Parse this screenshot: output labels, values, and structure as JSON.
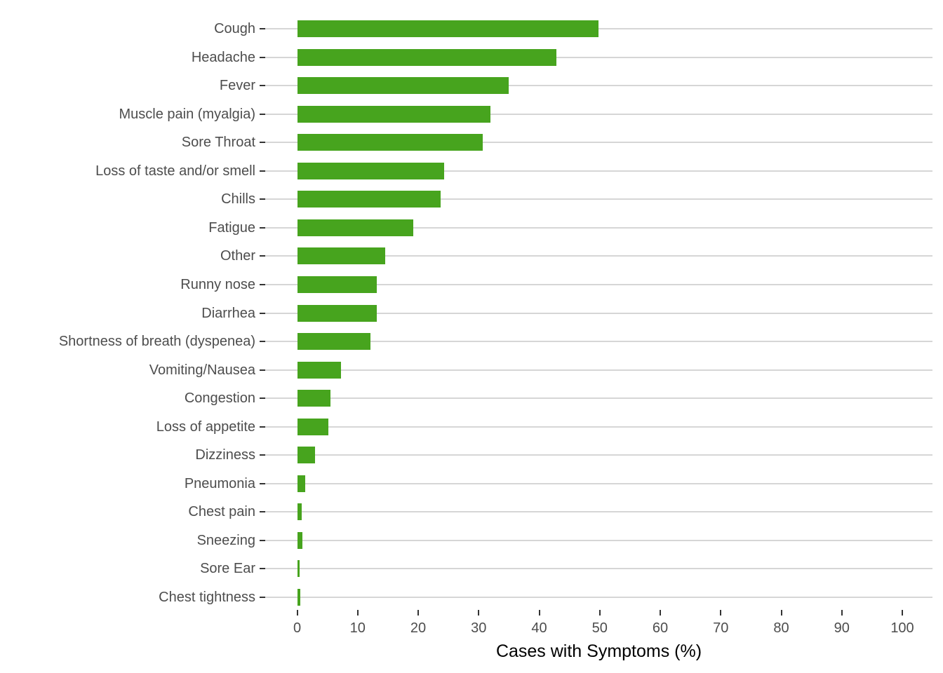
{
  "chart_data": {
    "type": "bar",
    "orientation": "horizontal",
    "title": "",
    "xlabel": "Cases with Symptoms (%)",
    "ylabel": "",
    "categories": [
      "Cough",
      "Headache",
      "Fever",
      "Muscle pain (myalgia)",
      "Sore Throat",
      "Loss of taste and/or smell",
      "Chills",
      "Fatigue",
      "Other",
      "Runny nose",
      "Diarrhea",
      "Shortness of breath (dyspenea)",
      "Vomiting/Nausea",
      "Congestion",
      "Loss of appetite",
      "Dizziness",
      "Pneumonia",
      "Chest pain",
      "Sneezing",
      "Sore Ear",
      "Chest tightness"
    ],
    "values": [
      49.8,
      42.8,
      34.9,
      31.9,
      30.7,
      24.3,
      23.7,
      19.2,
      14.6,
      13.2,
      13.2,
      12.1,
      7.3,
      5.5,
      5.2,
      3.0,
      1.3,
      0.8,
      0.9,
      0.4,
      0.5
    ],
    "xlim": [
      0,
      100
    ],
    "x_ticks": [
      0,
      10,
      20,
      30,
      40,
      50,
      60,
      70,
      80,
      90,
      100
    ],
    "grid": "horizontal-major-only",
    "legend": "none",
    "colors": {
      "bar": "#47A41E",
      "gridline": "#D6D6D6",
      "tick_mark": "#333333",
      "tick_text": "#4D4D4D",
      "axis_title": "#000000",
      "background": "#FFFFFF"
    }
  }
}
